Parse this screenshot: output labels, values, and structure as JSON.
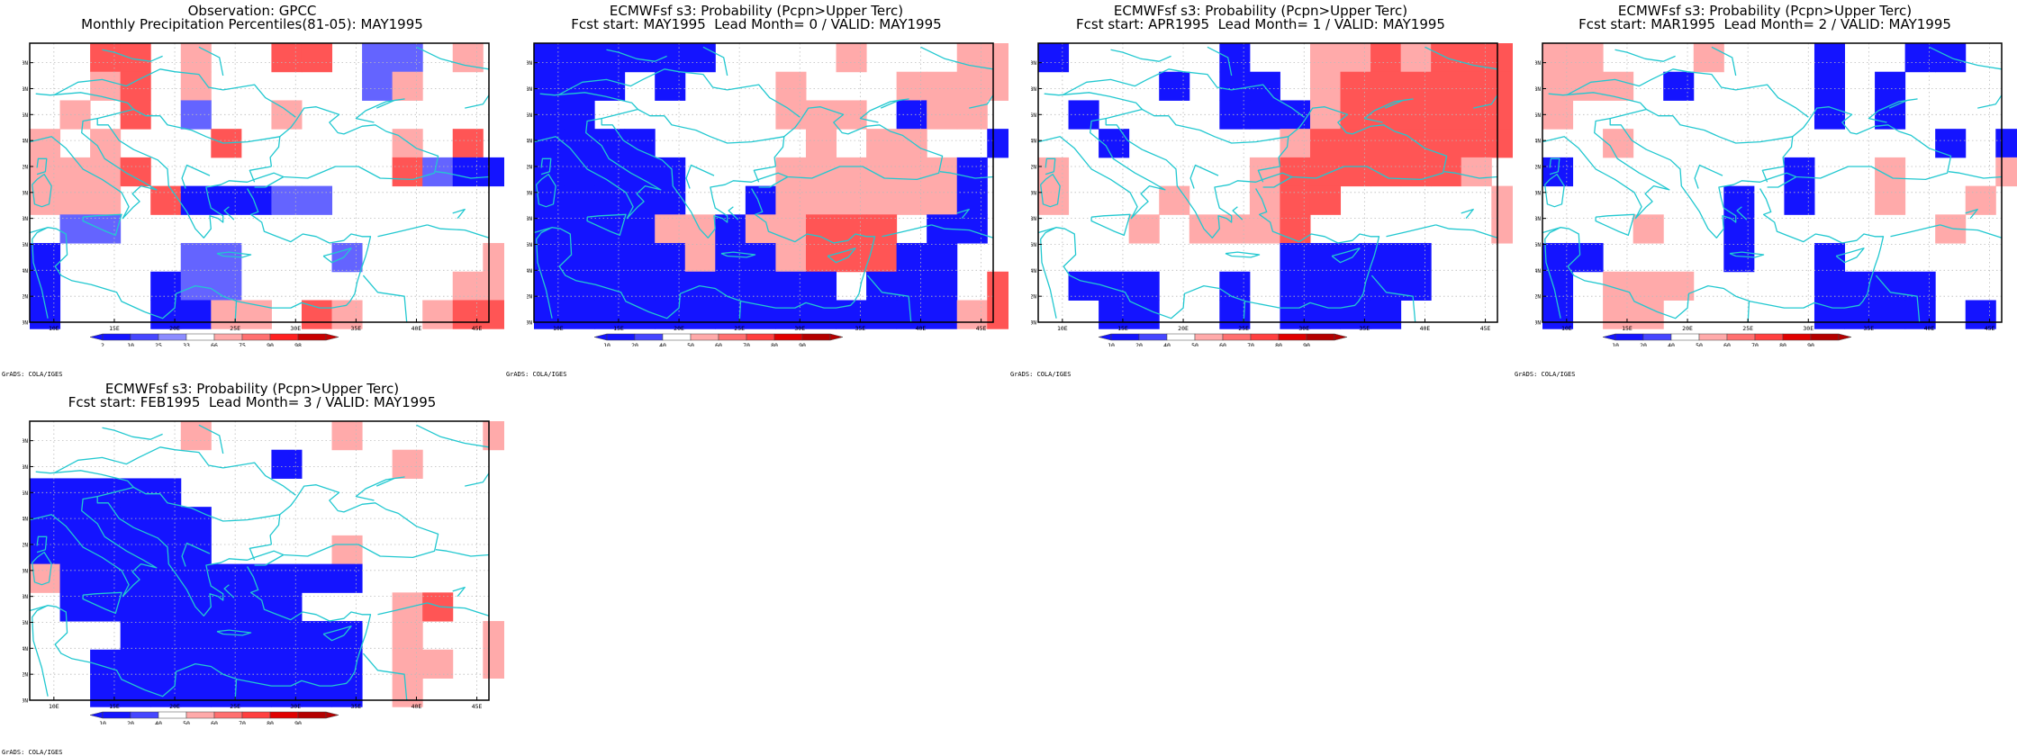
{
  "colors": {
    "coast": "#22c8d0",
    "grid": "#bbbbbb",
    "frame": "#000000"
  },
  "lat_labels": [
    "50N",
    "48N",
    "46N",
    "44N",
    "42N",
    "40N",
    "38N",
    "36N",
    "34N",
    "32N",
    "30N"
  ],
  "lon_labels": [
    "10E",
    "15E",
    "20E",
    "25E",
    "30E",
    "35E",
    "40E",
    "45E"
  ],
  "credit": "GrADS: COLA/IGES",
  "panels": [
    {
      "title1": "Observation: GPCC",
      "title2": "Monthly Precipitation Percentiles(81-05): MAY1995",
      "legend": {
        "labels": [
          "2",
          "10",
          "25",
          "33",
          "66",
          "75",
          "90",
          "98"
        ],
        "colors": [
          "#1414ff",
          "#4646ff",
          "#8c8cff",
          "#ffffff",
          "#ffaaaa",
          "#ff7070",
          "#ff2020",
          "#c80000"
        ]
      },
      "grid": [
        "00 00 0R 0R 00 rb 00 00 0R 0R 00 bb 0b 00 rb 00",
        "00 00 0r R0 00 rb 00 00 00 00 00 bb rb 00 00 00",
        "00 r0 00 R0 00 b0 00 00 r0 00 00 00 00 00 00 00",
        "r0 00 0r 00 00 00 0R 00 00 00 00 00 r0 00 R0 00",
        "r0 r0 r0 0R 00 00 00 00 00 00 00 00 R0 bb 0B 0B",
        "0r r0 r0 00 R0 0B 0B 0B 0b 0b 00 00 00 00 00 00",
        "00 0b 0b 00 00 00 00 00 00 00 00 00 00 00 00 00",
        "0B 00 00 00 00 bb 0b 00 00 00 bb 00 00 00 00 0r",
        "0B 00 00 00 0B bb 0b 00 00 00 00 00 00 00 0r 0r",
        "0B 00 00 00 0B 0B r0 r0 00 0R r0 00 00 r0 0R 0R"
      ]
    },
    {
      "title1": "ECMWFsf s3: Probability (Pcpn>Upper Terc)",
      "title2": "Fcst start: MAY1995  Lead Month= 0 / VALID: MAY1995",
      "legend": {
        "labels": [
          "10",
          "20",
          "40",
          "50",
          "60",
          "70",
          "80",
          "90"
        ],
        "colors": [
          "#1414ff",
          "#4646ff",
          "#ffffff",
          "#ffaaaa",
          "#ff7070",
          "#ff4040",
          "#e00000",
          "#b40000"
        ]
      },
      "grid": [
        "0B 0B 0B 0B 0B 0B 00 00 00 00 r0 00 00 00 0r 0r",
        "0B 0B 0B 00 0B 00 00 00 r0 00 00 00 r0 r0 r0 r0",
        "0B 0B 00 00 00 00 00 00 r0 r0 r0 00 0B r0 r0 00",
        "0B 0B 0B 0B 00 00 00 00 00 r0 00 r0 r0 00 00 0B",
        "0B 0B 0B 0B 0B 00 00 00 r0 r0 r0 r0 r0 r0 0B 00",
        "0B 0B 0B 0B 0B 00 00 0B r0 r0 r0 r0 r0 r0 0B 00",
        "0B 0B 0B 0B r0 r0 0B r0 r0 R0 R0 R0 00 0B 0B 00",
        "0B 0B 0B 0B 0B r0 0B 0B r0 R0 R0 R0 0B 0B 00 00",
        "0B 0B 0B 0B 0B 0B 0B 0B 0B 0B 00 0B 0B 0B 00 R0",
        "0B 0B 0B 0B 0B 0B 0B 0B 0B 0B 0B 0B 0B 0B r0 R0"
      ]
    },
    {
      "title1": "ECMWFsf s3: Probability (Pcpn>Upper Terc)",
      "title2": "Fcst start: APR1995  Lead Month= 1 / VALID: MAY1995",
      "legend": {
        "labels": [
          "10",
          "20",
          "40",
          "50",
          "60",
          "70",
          "80",
          "90"
        ],
        "colors": [
          "#1414ff",
          "#4646ff",
          "#ffffff",
          "#ffaaaa",
          "#ff7070",
          "#ff4040",
          "#e00000",
          "#b40000"
        ]
      },
      "grid": [
        "0B 00 00 00 00 00 0B 00 00 r0 r0 R0 r0 R0 R0 R0",
        "00 00 00 00 0B 00 0B 0B 00 r0 R0 R0 R0 R0 R0 R0",
        "00 0B 00 00 00 00 0B 0B 0B r0 R0 R0 R0 R0 R0 R0",
        "00 00 0B 00 00 00 00 00 r0 R0 R0 R0 R0 R0 R0 R0",
        "r0 00 00 00 00 00 00 r0 R0 R0 R0 R0 R0 R0 r0 00",
        "r0 00 00 00 r0 00 00 r0 R0 R0 00 00 00 00 00 r0",
        "00 00 00 r0 00 r0 r0 r0 R0 00 00 00 00 00 00 r0",
        "00 00 00 00 00 00 00 00 0B 0B 0B 0B 0B 00 00 00",
        "00 0B 0B 0B 00 00 0B 00 0B 0B 0B 0B 0B 00 00 00",
        "00 00 0B 0B 00 00 0B 00 0B 0B 0B 0B 00 00 00 00"
      ]
    },
    {
      "title1": "ECMWFsf s3: Probability (Pcpn>Upper Terc)",
      "title2": "Fcst start: MAR1995  Lead Month= 2 / VALID: MAY1995",
      "legend": {
        "labels": [
          "10",
          "20",
          "40",
          "50",
          "60",
          "70",
          "80",
          "90"
        ],
        "colors": [
          "#1414ff",
          "#4646ff",
          "#ffffff",
          "#ffaaaa",
          "#ff7070",
          "#ff4040",
          "#e00000",
          "#b40000"
        ]
      },
      "grid": [
        "r0 r0 00 00 00 r0 00 00 00 0B 00 00 0B 0B 00 00",
        "r0 r0 r0 00 0B 00 00 00 00 0B 00 0B 00 00 00 00",
        "r0 00 00 00 00 00 00 00 00 0B 00 0B 00 00 00 00",
        "00 00 r0 00 00 00 00 00 00 00 00 00 00 0B 00 0B",
        "0B 00 00 00 00 00 00 00 0B 00 00 r0 00 00 00 r0",
        "00 00 00 00 00 00 0B 00 0B 00 00 r0 00 00 r0 00",
        "00 00 00 r0 00 00 0B 00 00 00 00 00 00 r0 00 00",
        "0B 0B 00 00 00 00 0B 00 00 0B 00 00 00 00 00 00",
        "0B 00 r0 r0 r0 00 00 00 00 0B 0B 0B 0B 00 00 00",
        "0B 00 r0 r0 00 00 00 00 00 0B 0B 0B 0B 00 0B 00"
      ]
    },
    {
      "title1": "ECMWFsf s3: Probability (Pcpn>Upper Terc)",
      "title2": "Fcst start: FEB1995  Lead Month= 3 / VALID: MAY1995",
      "legend": {
        "labels": [
          "10",
          "20",
          "40",
          "50",
          "60",
          "70",
          "80",
          "90"
        ],
        "colors": [
          "#1414ff",
          "#4646ff",
          "#ffffff",
          "#ffaaaa",
          "#ff7070",
          "#ff4040",
          "#e00000",
          "#b40000"
        ]
      },
      "grid": [
        "00 00 00 00 00 r0 00 00 00 00 r0 00 00 00 00 r0",
        "00 00 00 00 00 00 00 00 0B 00 00 00 r0 00 00 00",
        "0B 0B 0B 0B 0B 00 00 00 00 00 00 00 00 00 00 00",
        "0B 0B 0B 0B 0B 0B 00 00 00 00 00 00 00 00 00 00",
        "0B 0B 0B 0B 0B 0B 00 00 00 00 r0 00 00 00 00 00",
        "r0 0B 0B 0B 0B 0B 0B 0B 0B 0B 0B 00 00 00 00 00",
        "00 0B 0B 0B 0B 0B 0B 0B 0B 00 00 00 r0 R0 00 00",
        "00 00 00 0B 0B 0B 0B 0B 0B 0B 0B 00 r0 00 00 r0",
        "00 00 0B 0B 0B 0B 0B 0B 0B 0B 0B 00 r0 r0 00 r0",
        "00 00 0B 0B 0B 0B 0B 0B 0B 0B 0B 00 r0 00 00 00"
      ]
    }
  ]
}
